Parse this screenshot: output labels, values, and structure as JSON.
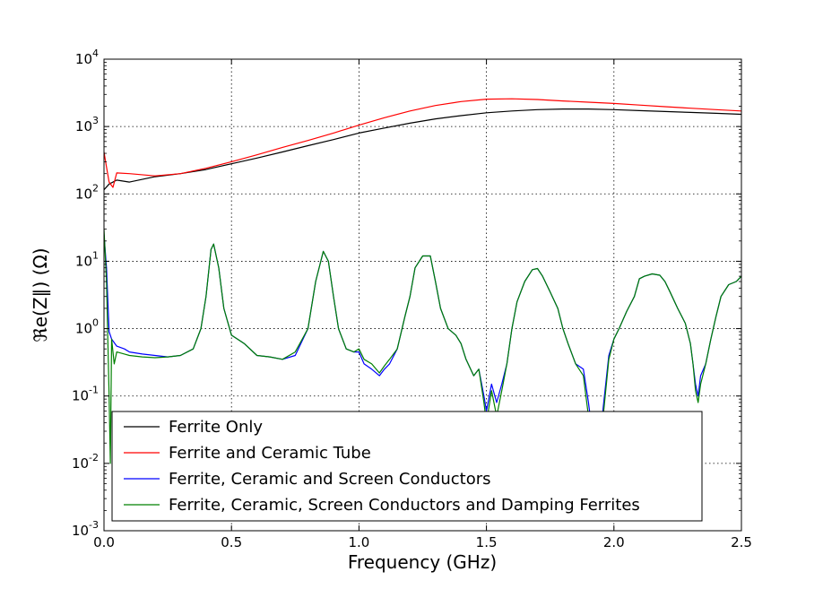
{
  "chart_data": {
    "type": "line",
    "xlabel": "Frequency (GHz)",
    "ylabel": "ℜe(Z∥) (Ω)",
    "xlim": [
      0,
      2.5
    ],
    "ylim": [
      0.001,
      10000
    ],
    "yscale": "log",
    "grid": true,
    "legend_position": "lower-left",
    "x_ticks": [
      "0.0",
      "0.5",
      "1.0",
      "1.5",
      "2.0",
      "2.5"
    ],
    "y_ticks": [
      {
        "base": "10",
        "exp": "-3"
      },
      {
        "base": "10",
        "exp": "-2"
      },
      {
        "base": "10",
        "exp": "-1"
      },
      {
        "base": "10",
        "exp": "0"
      },
      {
        "base": "10",
        "exp": "1"
      },
      {
        "base": "10",
        "exp": "2"
      },
      {
        "base": "10",
        "exp": "3"
      },
      {
        "base": "10",
        "exp": "4"
      }
    ],
    "series": [
      {
        "name": "Ferrite Only",
        "color": "#000000",
        "x": [
          0,
          0.02,
          0.05,
          0.1,
          0.2,
          0.3,
          0.4,
          0.5,
          0.6,
          0.7,
          0.8,
          0.9,
          1.0,
          1.1,
          1.2,
          1.3,
          1.4,
          1.5,
          1.6,
          1.7,
          1.8,
          1.9,
          2.0,
          2.1,
          2.2,
          2.3,
          2.4,
          2.5
        ],
        "y": [
          115,
          140,
          160,
          150,
          180,
          200,
          230,
          280,
          340,
          420,
          520,
          640,
          800,
          950,
          1120,
          1300,
          1450,
          1600,
          1700,
          1780,
          1820,
          1820,
          1780,
          1720,
          1670,
          1620,
          1570,
          1520
        ]
      },
      {
        "name": "Ferrite and Ceramic Tube",
        "color": "#ff0000",
        "x": [
          0,
          0.01,
          0.02,
          0.035,
          0.05,
          0.1,
          0.2,
          0.3,
          0.4,
          0.5,
          0.6,
          0.7,
          0.8,
          0.9,
          1.0,
          1.1,
          1.2,
          1.3,
          1.4,
          1.5,
          1.6,
          1.7,
          1.8,
          1.9,
          2.0,
          2.1,
          2.2,
          2.3,
          2.4,
          2.5
        ],
        "y": [
          420,
          250,
          150,
          125,
          205,
          200,
          185,
          200,
          240,
          300,
          380,
          490,
          620,
          800,
          1050,
          1350,
          1700,
          2050,
          2350,
          2550,
          2580,
          2520,
          2400,
          2300,
          2200,
          2080,
          1970,
          1870,
          1780,
          1700
        ]
      },
      {
        "name": "Ferrite, Ceramic and Screen Conductors",
        "color": "#0000ff",
        "x": [
          0,
          0.01,
          0.02,
          0.03,
          0.05,
          0.08,
          0.1,
          0.15,
          0.2,
          0.25,
          0.3,
          0.35,
          0.38,
          0.4,
          0.42,
          0.43,
          0.45,
          0.47,
          0.5,
          0.55,
          0.6,
          0.65,
          0.7,
          0.75,
          0.8,
          0.83,
          0.86,
          0.88,
          0.9,
          0.92,
          0.95,
          0.98,
          1.0,
          1.02,
          1.05,
          1.08,
          1.1,
          1.12,
          1.15,
          1.18,
          1.2,
          1.22,
          1.25,
          1.28,
          1.3,
          1.32,
          1.35,
          1.38,
          1.4,
          1.42,
          1.45,
          1.47,
          1.49,
          1.5,
          1.52,
          1.54,
          1.56,
          1.58,
          1.6,
          1.62,
          1.65,
          1.68,
          1.7,
          1.72,
          1.75,
          1.78,
          1.8,
          1.82,
          1.85,
          1.88,
          1.9,
          1.92,
          1.94,
          1.96,
          1.98,
          2.0,
          2.02,
          2.05,
          2.08,
          2.1,
          2.12,
          2.15,
          2.18,
          2.2,
          2.22,
          2.25,
          2.28,
          2.3,
          2.31,
          2.32,
          2.33,
          2.34,
          2.36,
          2.38,
          2.4,
          2.42,
          2.45,
          2.48,
          2.5
        ],
        "y": [
          25,
          8,
          0.9,
          0.7,
          0.55,
          0.5,
          0.45,
          0.42,
          0.4,
          0.38,
          0.4,
          0.5,
          1.0,
          3.0,
          15,
          18,
          8,
          2.0,
          0.8,
          0.6,
          0.4,
          0.38,
          0.35,
          0.4,
          1.0,
          5,
          14,
          10,
          3.0,
          1.0,
          0.5,
          0.45,
          0.45,
          0.3,
          0.25,
          0.2,
          0.25,
          0.3,
          0.5,
          1.5,
          3.0,
          8,
          12,
          12,
          5,
          2.0,
          1.0,
          0.8,
          0.6,
          0.35,
          0.2,
          0.25,
          0.1,
          0.06,
          0.15,
          0.08,
          0.15,
          0.3,
          1.0,
          2.5,
          5,
          7.5,
          7.8,
          6,
          3.5,
          2.0,
          1.0,
          0.6,
          0.3,
          0.25,
          0.08,
          0.02,
          0.015,
          0.08,
          0.4,
          0.7,
          1.0,
          1.8,
          3.0,
          5.5,
          6,
          6.5,
          6.2,
          5.0,
          3.5,
          2.0,
          1.2,
          0.6,
          0.3,
          0.15,
          0.1,
          0.2,
          0.3,
          0.7,
          1.5,
          3.0,
          4.5,
          5.0,
          6.0
        ]
      },
      {
        "name": "Ferrite, Ceramic, Screen Conductors and Damping Ferrites",
        "color": "#008000",
        "x": [
          0,
          0.01,
          0.02,
          0.025,
          0.03,
          0.04,
          0.05,
          0.08,
          0.1,
          0.15,
          0.2,
          0.25,
          0.3,
          0.35,
          0.38,
          0.4,
          0.42,
          0.43,
          0.45,
          0.47,
          0.5,
          0.55,
          0.6,
          0.65,
          0.7,
          0.75,
          0.8,
          0.83,
          0.86,
          0.88,
          0.9,
          0.92,
          0.95,
          0.98,
          1.0,
          1.02,
          1.05,
          1.08,
          1.1,
          1.12,
          1.15,
          1.18,
          1.2,
          1.22,
          1.25,
          1.28,
          1.3,
          1.32,
          1.35,
          1.38,
          1.4,
          1.42,
          1.45,
          1.47,
          1.49,
          1.5,
          1.52,
          1.54,
          1.56,
          1.58,
          1.6,
          1.62,
          1.65,
          1.68,
          1.7,
          1.72,
          1.75,
          1.78,
          1.8,
          1.82,
          1.85,
          1.88,
          1.9,
          1.92,
          1.94,
          1.96,
          1.98,
          2.0,
          2.02,
          2.05,
          2.08,
          2.1,
          2.12,
          2.15,
          2.18,
          2.2,
          2.22,
          2.25,
          2.28,
          2.3,
          2.31,
          2.32,
          2.33,
          2.34,
          2.36,
          2.38,
          2.4,
          2.42,
          2.45,
          2.48,
          2.5
        ],
        "y": [
          30,
          5,
          0.1,
          0.01,
          0.7,
          0.3,
          0.45,
          0.42,
          0.4,
          0.38,
          0.37,
          0.38,
          0.4,
          0.5,
          1.0,
          3.0,
          15,
          18,
          8,
          2.0,
          0.8,
          0.6,
          0.4,
          0.38,
          0.35,
          0.45,
          1.0,
          5,
          14,
          10,
          3.0,
          1.0,
          0.5,
          0.45,
          0.5,
          0.35,
          0.3,
          0.22,
          0.28,
          0.35,
          0.5,
          1.5,
          3.0,
          8,
          12,
          12,
          5,
          2.0,
          1.0,
          0.8,
          0.6,
          0.35,
          0.2,
          0.25,
          0.08,
          0.04,
          0.12,
          0.05,
          0.12,
          0.3,
          1.0,
          2.5,
          5,
          7.5,
          7.8,
          6,
          3.5,
          2.0,
          1.0,
          0.6,
          0.3,
          0.2,
          0.05,
          0.01,
          0.005,
          0.06,
          0.35,
          0.7,
          1.0,
          1.8,
          3.0,
          5.5,
          6,
          6.5,
          6.2,
          5.0,
          3.5,
          2.0,
          1.2,
          0.6,
          0.3,
          0.12,
          0.08,
          0.15,
          0.3,
          0.7,
          1.5,
          3.0,
          4.5,
          5.0,
          6.0
        ]
      }
    ]
  }
}
